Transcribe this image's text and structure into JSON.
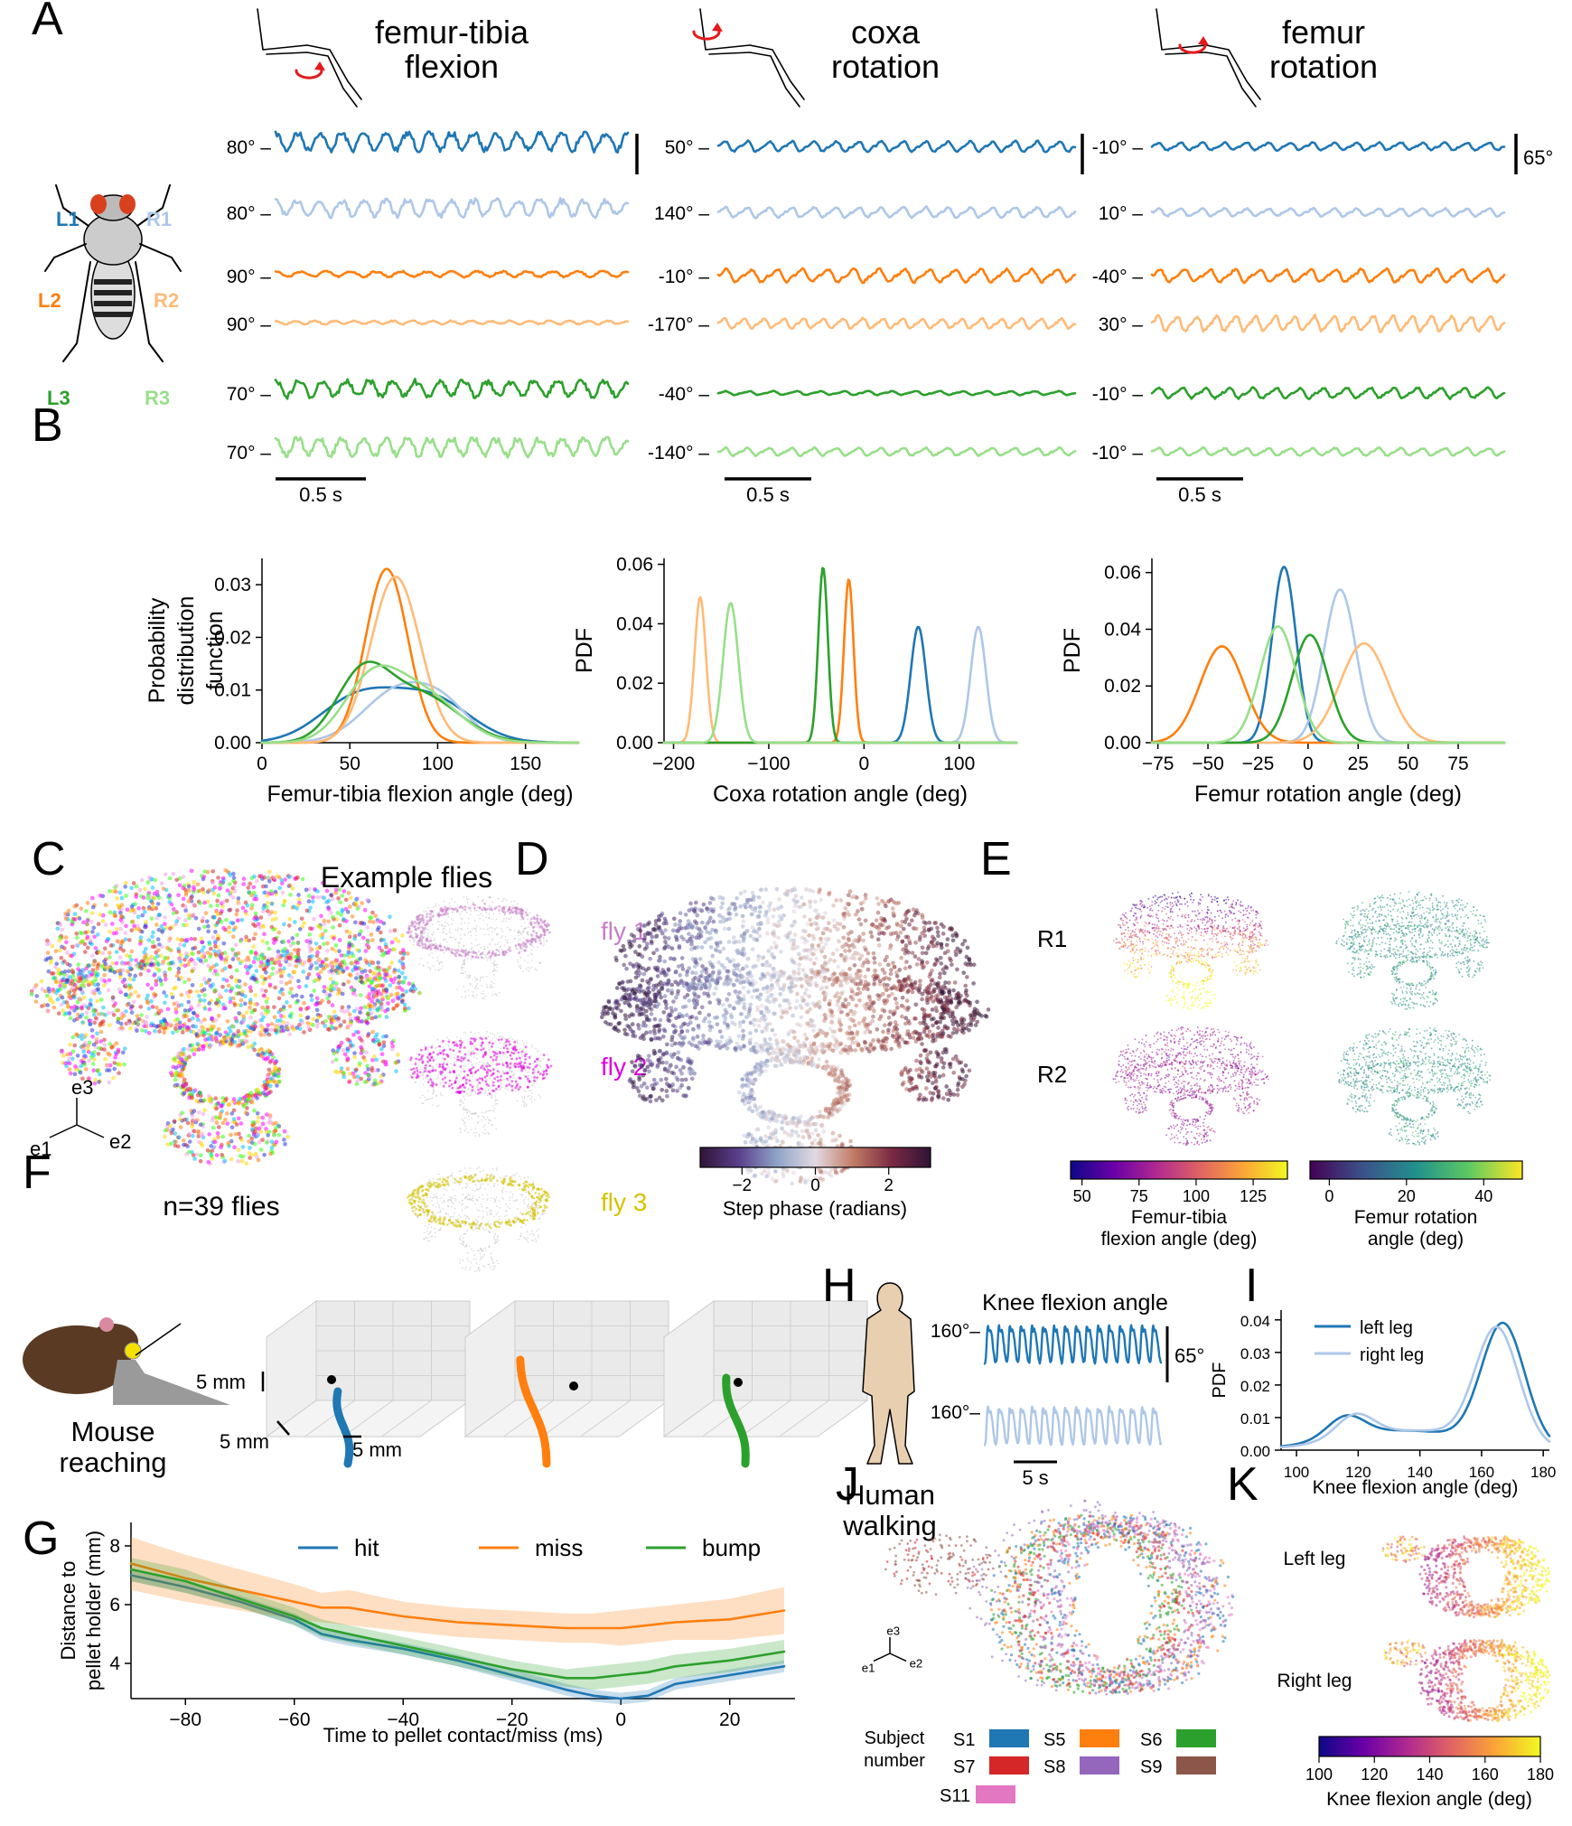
{
  "panel_letters": [
    "A",
    "B",
    "C",
    "D",
    "E",
    "F",
    "G",
    "H",
    "I",
    "J",
    "K"
  ],
  "colors": {
    "L1": "#1f77b4",
    "R1": "#aec7e8",
    "L2": "#ff7f0e",
    "R2": "#ffbb78",
    "L3": "#2ca02c",
    "R3": "#98df8a",
    "hit": "#1f77b4",
    "miss": "#ff7f0e",
    "bump": "#2ca02c",
    "S1": "#1f77b4",
    "S5": "#ff7f0e",
    "S6": "#2ca02c",
    "S7": "#d62728",
    "S8": "#9467bd",
    "S9": "#8c564b",
    "S11": "#e377c2"
  },
  "panelA": {
    "legs": [
      "L1",
      "R1",
      "L2",
      "R2",
      "L3",
      "R3"
    ],
    "columns": [
      {
        "title_lines": [
          "femur-tibia",
          "flexion"
        ],
        "offsets": [
          "80°",
          "80°",
          "90°",
          "90°",
          "70°",
          "70°"
        ],
        "time_scale": "0.5 s"
      },
      {
        "title_lines": [
          "coxa",
          "rotation"
        ],
        "offsets": [
          "50°",
          "140°",
          "-10°",
          "-170°",
          "-40°",
          "-140°"
        ],
        "time_scale": "0.5 s"
      },
      {
        "title_lines": [
          "femur",
          "rotation"
        ],
        "offsets": [
          "-10°",
          "10°",
          "-40°",
          "30°",
          "-10°",
          "-10°"
        ],
        "time_scale": "0.5 s"
      }
    ],
    "angle_scale": "65°"
  },
  "panelC": {
    "example_title": "Example flies",
    "flies": [
      "fly 1",
      "fly 2",
      "fly 3"
    ],
    "n_label": "n=39 flies",
    "axes": [
      "e3",
      "e1",
      "e2"
    ]
  },
  "panelD": {
    "colorbar_label": "Step phase (radians)",
    "ticks": [
      "−2",
      "0",
      "2"
    ]
  },
  "panelE": {
    "rows": [
      "R1",
      "R2"
    ],
    "cbar1_label": [
      "Femur-tibia",
      "flexion angle (deg)"
    ],
    "cbar1_ticks": [
      "50",
      "75",
      "100",
      "125"
    ],
    "cbar2_label": [
      "Femur rotation",
      "angle (deg)"
    ],
    "cbar2_ticks": [
      "0",
      "20",
      "40"
    ]
  },
  "panelF": {
    "caption": [
      "Mouse",
      "reaching"
    ],
    "scale_v": "5 mm",
    "scale_h1": "5 mm",
    "scale_h2": "5 mm"
  },
  "panelH": {
    "title": "Knee flexion angle",
    "offsets": [
      "160°",
      "160°"
    ],
    "angle_scale": "65°",
    "time_scale": "5 s",
    "caption": [
      "Human",
      "walking"
    ]
  },
  "panelJ": {
    "legend_title": [
      "Subject",
      "number"
    ],
    "subjects": [
      "S1",
      "S5",
      "S6",
      "S7",
      "S8",
      "S9",
      "S11"
    ],
    "axes": [
      "e3",
      "e1",
      "e2"
    ]
  },
  "panelK": {
    "rows": [
      "Left leg",
      "Right leg"
    ],
    "colorbar_label": "Knee flexion angle (deg)",
    "ticks": [
      "100",
      "120",
      "140",
      "160",
      "180"
    ]
  },
  "chart_data": [
    {
      "id": "B1",
      "type": "line",
      "xlabel": "Femur-tibia flexion angle (deg)",
      "ylabel_lines": [
        "Probability",
        "distribution",
        "function"
      ],
      "xlim": [
        0,
        180
      ],
      "ylim": [
        0,
        0.035
      ],
      "xticks": [
        0,
        50,
        100,
        150
      ],
      "yticks": [
        0.0,
        0.01,
        0.02,
        0.03
      ],
      "series": [
        {
          "leg": "L1",
          "peaks": [
            [
              55,
              0.0085,
              22
            ],
            [
              97,
              0.008,
              22
            ]
          ]
        },
        {
          "leg": "R1",
          "peaks": [
            [
              78,
              0.01,
              20
            ],
            [
              105,
              0.005,
              15
            ]
          ]
        },
        {
          "leg": "L2",
          "peaks": [
            [
              71,
              0.033,
              12
            ]
          ]
        },
        {
          "leg": "R2",
          "peaks": [
            [
              76,
              0.0315,
              14
            ]
          ]
        },
        {
          "leg": "L3",
          "peaks": [
            [
              57,
              0.012,
              15
            ],
            [
              90,
              0.009,
              22
            ]
          ]
        },
        {
          "leg": "R3",
          "peaks": [
            [
              62,
              0.011,
              16
            ],
            [
              92,
              0.009,
              20
            ]
          ]
        }
      ]
    },
    {
      "id": "B2",
      "type": "line",
      "xlabel": "Coxa rotation angle (deg)",
      "ylabel_lines": [
        "PDF"
      ],
      "xlim": [
        -210,
        160
      ],
      "ylim": [
        0,
        0.062
      ],
      "xticks": [
        -200,
        -100,
        0,
        100
      ],
      "yticks": [
        0.0,
        0.02,
        0.04,
        0.06
      ],
      "series": [
        {
          "leg": "L1",
          "peaks": [
            [
              57,
              0.039,
              8
            ]
          ]
        },
        {
          "leg": "R1",
          "peaks": [
            [
              120,
              0.039,
              8
            ]
          ]
        },
        {
          "leg": "L2",
          "peaks": [
            [
              -16,
              0.055,
              5
            ]
          ]
        },
        {
          "leg": "R2",
          "peaks": [
            [
              -172,
              0.049,
              6
            ]
          ]
        },
        {
          "leg": "L3",
          "peaks": [
            [
              -43,
              0.059,
              5
            ]
          ]
        },
        {
          "leg": "R3",
          "peaks": [
            [
              -140,
              0.047,
              8
            ]
          ]
        }
      ]
    },
    {
      "id": "B3",
      "type": "line",
      "xlabel": "Femur rotation angle (deg)",
      "ylabel_lines": [
        "PDF"
      ],
      "xlim": [
        -78,
        98
      ],
      "ylim": [
        0,
        0.065
      ],
      "xticks": [
        -75,
        -50,
        -25,
        0,
        25,
        50,
        75
      ],
      "yticks": [
        0.0,
        0.02,
        0.04,
        0.06
      ],
      "series": [
        {
          "leg": "L1",
          "peaks": [
            [
              -12,
              0.062,
              6
            ]
          ]
        },
        {
          "leg": "R1",
          "peaks": [
            [
              16,
              0.054,
              8
            ]
          ]
        },
        {
          "leg": "L2",
          "peaks": [
            [
              -43,
              0.034,
              11
            ]
          ]
        },
        {
          "leg": "R2",
          "peaks": [
            [
              28,
              0.035,
              12
            ]
          ]
        },
        {
          "leg": "L3",
          "peaks": [
            [
              1,
              0.038,
              9
            ]
          ]
        },
        {
          "leg": "R3",
          "peaks": [
            [
              -15,
              0.041,
              9
            ]
          ]
        }
      ]
    },
    {
      "id": "G",
      "type": "line",
      "xlabel": "Time to pellet contact/miss (ms)",
      "ylabel_lines": [
        "Distance to",
        "pellet holder (mm)"
      ],
      "xlim": [
        -90,
        32
      ],
      "ylim": [
        2.8,
        8.8
      ],
      "xticks": [
        -80,
        -60,
        -40,
        -20,
        0,
        20
      ],
      "yticks": [
        4,
        6,
        8
      ],
      "x": [
        -90,
        -80,
        -70,
        -60,
        -55,
        -50,
        -40,
        -30,
        -20,
        -10,
        -5,
        0,
        5,
        10,
        20,
        30
      ],
      "series": [
        {
          "name": "hit",
          "values": [
            7.0,
            6.6,
            6.1,
            5.5,
            5.0,
            4.8,
            4.5,
            4.1,
            3.6,
            3.1,
            2.9,
            2.8,
            2.9,
            3.3,
            3.6,
            3.9
          ],
          "band": [
            0.2,
            0.2,
            0.2,
            0.2,
            0.2,
            0.2,
            0.2,
            0.2,
            0.2,
            0.2,
            0.2,
            0.2,
            0.2,
            0.2,
            0.2,
            0.2
          ]
        },
        {
          "name": "miss",
          "values": [
            7.4,
            6.9,
            6.5,
            6.1,
            5.9,
            5.9,
            5.6,
            5.4,
            5.3,
            5.2,
            5.2,
            5.2,
            5.3,
            5.4,
            5.5,
            5.8
          ],
          "band": [
            0.9,
            0.8,
            0.7,
            0.6,
            0.5,
            0.6,
            0.5,
            0.5,
            0.5,
            0.5,
            0.5,
            0.6,
            0.6,
            0.6,
            0.7,
            0.8
          ]
        },
        {
          "name": "bump",
          "values": [
            7.2,
            6.8,
            6.2,
            5.6,
            5.2,
            5.0,
            4.6,
            4.2,
            3.8,
            3.5,
            3.5,
            3.6,
            3.7,
            3.9,
            4.1,
            4.4
          ],
          "band": [
            0.4,
            0.4,
            0.3,
            0.3,
            0.3,
            0.3,
            0.3,
            0.3,
            0.3,
            0.3,
            0.4,
            0.4,
            0.4,
            0.4,
            0.4,
            0.4
          ]
        }
      ]
    },
    {
      "id": "I",
      "type": "line",
      "xlabel": "Knee flexion angle (deg)",
      "ylabel_lines": [
        "PDF"
      ],
      "xlim": [
        95,
        182
      ],
      "ylim": [
        0,
        0.043
      ],
      "xticks": [
        100,
        120,
        140,
        160,
        180
      ],
      "yticks": [
        0.0,
        0.01,
        0.02,
        0.03,
        0.04
      ],
      "series": [
        {
          "name": "left leg",
          "peaks": [
            [
              116,
              0.0065,
              6
            ],
            [
              135,
              0.006,
              22
            ],
            [
              167,
              0.037,
              7
            ]
          ]
        },
        {
          "name": "right leg",
          "peaks": [
            [
              119,
              0.007,
              6
            ],
            [
              138,
              0.006,
              22
            ],
            [
              165,
              0.035,
              7
            ]
          ]
        }
      ]
    }
  ]
}
